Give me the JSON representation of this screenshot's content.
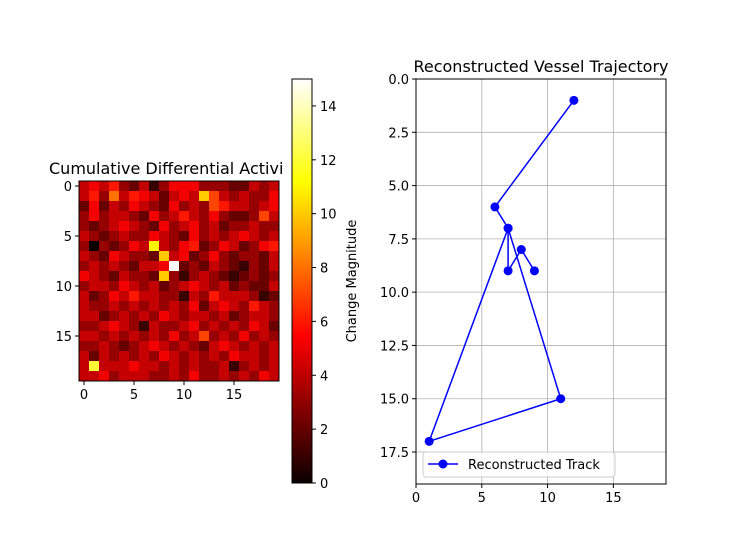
{
  "chart_data": [
    {
      "type": "heatmap",
      "title": "Cumulative Differential Activi",
      "xlabel": "",
      "ylabel": "",
      "x_ticks": [
        0,
        5,
        10,
        15
      ],
      "y_ticks": [
        0,
        5,
        10,
        15
      ],
      "grid": false,
      "colormap": "hot",
      "value_range": [
        0,
        15
      ],
      "colorbar": {
        "label": "Change Magnitude",
        "ticks": [
          0,
          2,
          4,
          6,
          8,
          10,
          12,
          14
        ]
      },
      "matrix": [
        [
          4,
          5,
          4,
          6,
          3,
          2,
          4,
          1,
          3,
          5,
          5,
          5,
          3,
          3,
          3,
          2,
          2,
          4,
          3,
          4
        ],
        [
          4,
          6,
          3,
          8,
          4,
          6,
          5,
          4,
          2,
          4,
          5,
          4,
          10,
          7,
          4,
          3,
          4,
          3,
          3,
          5
        ],
        [
          2,
          5,
          2,
          4,
          3,
          5,
          4,
          3,
          2,
          5,
          3,
          4,
          3,
          7,
          6,
          4,
          4,
          3,
          4,
          5
        ],
        [
          3,
          5,
          3,
          4,
          4,
          3,
          2,
          5,
          3,
          4,
          6,
          4,
          3,
          5,
          3,
          2,
          2,
          3,
          7,
          4
        ],
        [
          3,
          2,
          3,
          4,
          5,
          4,
          3,
          2,
          5,
          3,
          4,
          5,
          3,
          4,
          2,
          3,
          3,
          4,
          3,
          3
        ],
        [
          4,
          3,
          2,
          3,
          4,
          3,
          3,
          5,
          4,
          3,
          2,
          5,
          3,
          4,
          3,
          4,
          5,
          4,
          3,
          4
        ],
        [
          3,
          0,
          3,
          2,
          3,
          5,
          4,
          11,
          4,
          3,
          5,
          6,
          2,
          3,
          5,
          4,
          2,
          3,
          5,
          6
        ],
        [
          4,
          3,
          2,
          5,
          4,
          3,
          3,
          2,
          10,
          4,
          5,
          2,
          3,
          5,
          3,
          2,
          3,
          3,
          2,
          4
        ],
        [
          3,
          4,
          3,
          4,
          3,
          2,
          4,
          4,
          5,
          15,
          2,
          3,
          2,
          4,
          3,
          2,
          1,
          3,
          2,
          4
        ],
        [
          5,
          4,
          3,
          2,
          4,
          3,
          3,
          2,
          10,
          3,
          1,
          3,
          4,
          3,
          2,
          1,
          2,
          3,
          2,
          3
        ],
        [
          3,
          4,
          4,
          3,
          5,
          4,
          3,
          4,
          2,
          3,
          4,
          5,
          4,
          3,
          4,
          2,
          3,
          2,
          2,
          4
        ],
        [
          4,
          2,
          3,
          5,
          4,
          6,
          4,
          4,
          3,
          3,
          1,
          4,
          3,
          6,
          4,
          4,
          4,
          3,
          1,
          2
        ],
        [
          4,
          3,
          3,
          4,
          3,
          4,
          3,
          4,
          3,
          4,
          3,
          5,
          2,
          4,
          5,
          4,
          3,
          6,
          4,
          3
        ],
        [
          4,
          4,
          2,
          3,
          4,
          3,
          4,
          3,
          5,
          4,
          3,
          4,
          4,
          3,
          4,
          2,
          3,
          4,
          4,
          3
        ],
        [
          3,
          3,
          4,
          5,
          4,
          3,
          1,
          4,
          3,
          3,
          4,
          5,
          3,
          4,
          3,
          4,
          3,
          5,
          4,
          2
        ],
        [
          4,
          4,
          3,
          4,
          3,
          4,
          3,
          4,
          3,
          5,
          3,
          4,
          7,
          3,
          4,
          3,
          5,
          3,
          4,
          3
        ],
        [
          3,
          3,
          4,
          3,
          2,
          3,
          4,
          5,
          4,
          3,
          4,
          3,
          2,
          4,
          5,
          4,
          3,
          4,
          3,
          4
        ],
        [
          4,
          2,
          4,
          3,
          4,
          3,
          4,
          3,
          5,
          4,
          3,
          4,
          3,
          4,
          3,
          5,
          4,
          4,
          3,
          4
        ],
        [
          4,
          12,
          4,
          4,
          4,
          5,
          4,
          4,
          3,
          4,
          3,
          4,
          3,
          3,
          4,
          1,
          3,
          4,
          3,
          4
        ],
        [
          4,
          4,
          5,
          3,
          4,
          4,
          4,
          3,
          3,
          4,
          3,
          5,
          3,
          3,
          4,
          3,
          4,
          3,
          5,
          4
        ]
      ]
    },
    {
      "type": "line",
      "title": "Reconstructed Vessel Trajectory",
      "xlabel": "",
      "ylabel": "",
      "xlim": [
        0,
        19
      ],
      "ylim": [
        19,
        0
      ],
      "y_inverted": true,
      "x_ticks": [
        0,
        5,
        10,
        15
      ],
      "y_ticks": [
        0.0,
        2.5,
        5.0,
        7.5,
        10.0,
        12.5,
        15.0,
        17.5
      ],
      "y_tick_labels": [
        "0.0",
        "2.5",
        "5.0",
        "7.5",
        "10.0",
        "12.5",
        "15.0",
        "17.5"
      ],
      "grid": true,
      "legend_position": "lower-left",
      "series": [
        {
          "name": "Reconstructed Track",
          "color": "#0000ff",
          "marker": "circle",
          "x": [
            12,
            6,
            7,
            11,
            1,
            7,
            7,
            8,
            9
          ],
          "y": [
            1,
            6,
            7,
            15,
            17,
            7,
            9,
            8,
            9
          ]
        }
      ]
    }
  ]
}
